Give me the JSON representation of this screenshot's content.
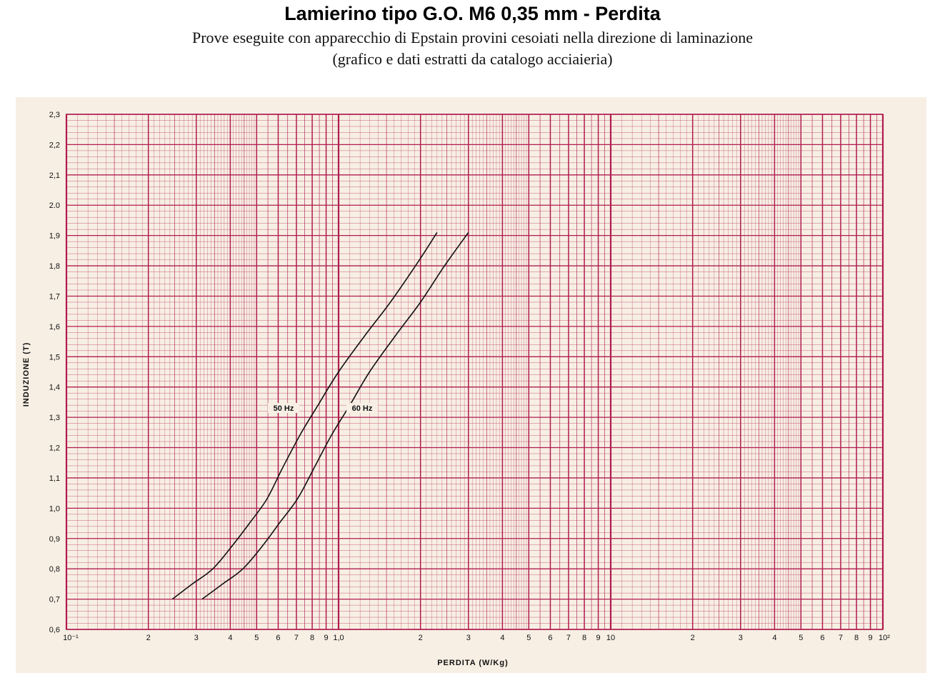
{
  "header": {
    "title": "Lamierino tipo G.O. M6 0,35 mm - Perdita",
    "subtitle_line1": "Prove eseguite con apparecchio di Epstain provini cesoiati nella direzione di laminazione",
    "subtitle_line2": "(grafico e dati estratti da catalogo acciaieria)"
  },
  "chart_data": {
    "type": "line",
    "title": "Lamierino tipo G.O. M6 0,35 mm - Perdita",
    "xlabel": "PERDITA (W/Kg)",
    "ylabel": "INDUZIONE (T)",
    "x_scale": "log",
    "xlim": [
      0.1,
      100
    ],
    "ylim": [
      0.6,
      2.3
    ],
    "grid": true,
    "grid_color": "#b01c4e",
    "line_color": "#111111",
    "background_color": "#f7efe4",
    "x_ticks": [
      {
        "value": 0.1,
        "label": "10⁻¹"
      },
      {
        "value": 0.2,
        "label": "2"
      },
      {
        "value": 0.3,
        "label": "3"
      },
      {
        "value": 0.4,
        "label": "4"
      },
      {
        "value": 0.5,
        "label": "5"
      },
      {
        "value": 0.6,
        "label": "6"
      },
      {
        "value": 0.7,
        "label": "7"
      },
      {
        "value": 0.8,
        "label": "8"
      },
      {
        "value": 0.9,
        "label": "9"
      },
      {
        "value": 1.0,
        "label": "1,0"
      },
      {
        "value": 2,
        "label": "2"
      },
      {
        "value": 3,
        "label": "3"
      },
      {
        "value": 4,
        "label": "4"
      },
      {
        "value": 5,
        "label": "5"
      },
      {
        "value": 6,
        "label": "6"
      },
      {
        "value": 7,
        "label": "7"
      },
      {
        "value": 8,
        "label": "8"
      },
      {
        "value": 9,
        "label": "9"
      },
      {
        "value": 10,
        "label": "10"
      },
      {
        "value": 20,
        "label": "2"
      },
      {
        "value": 30,
        "label": "3"
      },
      {
        "value": 40,
        "label": "4"
      },
      {
        "value": 50,
        "label": "5"
      },
      {
        "value": 60,
        "label": "6"
      },
      {
        "value": 70,
        "label": "7"
      },
      {
        "value": 80,
        "label": "8"
      },
      {
        "value": 90,
        "label": "9"
      },
      {
        "value": 100,
        "label": "10²"
      }
    ],
    "y_ticks": [
      {
        "value": 0.6,
        "label": "0,6"
      },
      {
        "value": 0.7,
        "label": "0,7"
      },
      {
        "value": 0.8,
        "label": "0,8"
      },
      {
        "value": 0.9,
        "label": "0,9"
      },
      {
        "value": 1.0,
        "label": "1,0"
      },
      {
        "value": 1.1,
        "label": "1,1"
      },
      {
        "value": 1.2,
        "label": "1,2"
      },
      {
        "value": 1.3,
        "label": "1,3"
      },
      {
        "value": 1.4,
        "label": "1,4"
      },
      {
        "value": 1.5,
        "label": "1,5"
      },
      {
        "value": 1.6,
        "label": "1,6"
      },
      {
        "value": 1.7,
        "label": "1,7"
      },
      {
        "value": 1.8,
        "label": "1,8"
      },
      {
        "value": 1.9,
        "label": "1,9"
      },
      {
        "value": 2.0,
        "label": "2.0"
      },
      {
        "value": 2.1,
        "label": "2,1"
      },
      {
        "value": 2.2,
        "label": "2,2"
      },
      {
        "value": 2.3,
        "label": "2,3"
      }
    ],
    "series": [
      {
        "name": "50 Hz",
        "x": [
          0.245,
          0.29,
          0.345,
          0.41,
          0.47,
          0.545,
          0.62,
          0.72,
          0.84,
          1.0,
          1.25,
          1.55,
          1.95,
          2.3
        ],
        "y": [
          0.7,
          0.75,
          0.8,
          0.88,
          0.95,
          1.03,
          1.13,
          1.24,
          1.34,
          1.45,
          1.57,
          1.68,
          1.81,
          1.91
        ]
      },
      {
        "name": "60 Hz",
        "x": [
          0.315,
          0.375,
          0.445,
          0.53,
          0.605,
          0.705,
          0.81,
          0.94,
          1.1,
          1.3,
          1.62,
          2.0,
          2.45,
          3.0
        ],
        "y": [
          0.7,
          0.75,
          0.8,
          0.88,
          0.95,
          1.03,
          1.13,
          1.24,
          1.34,
          1.45,
          1.57,
          1.68,
          1.8,
          1.91
        ]
      }
    ]
  }
}
